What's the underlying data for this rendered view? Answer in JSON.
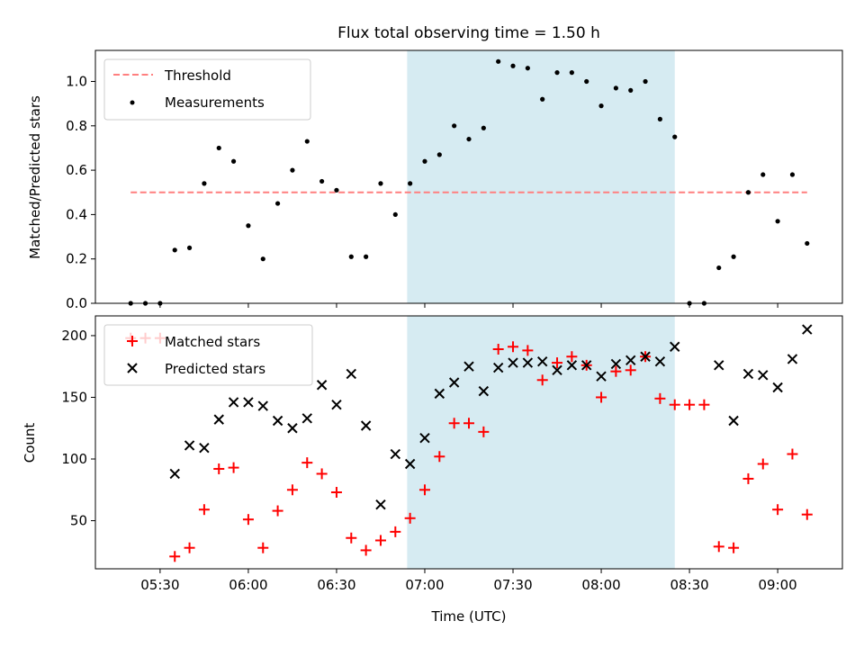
{
  "figure": {
    "title": "Flux total observing time = 1.50 h"
  },
  "colors": {
    "threshold": "#ff7f7f",
    "measurement": "#000000",
    "matched": "#ff0000",
    "predicted": "#000000",
    "observing_span": "#add8e6"
  },
  "chart_data": [
    {
      "type": "scatter",
      "panel": "top",
      "title": "Flux total observing time = 1.50 h",
      "xlabel": "",
      "ylabel": "Matched/Predicted stars",
      "xlim": [
        "05:08",
        "09:22"
      ],
      "ylim": [
        0,
        1.14
      ],
      "yticks": [
        0.0,
        0.2,
        0.4,
        0.6,
        0.8,
        1.0
      ],
      "ytick_labels": [
        "0.0",
        "0.2",
        "0.4",
        "0.6",
        "0.8",
        "1.0"
      ],
      "legend_position": "upper left",
      "shaded_span": [
        "06:54",
        "08:25"
      ],
      "threshold": {
        "name": "Threshold",
        "y": 0.5,
        "x_range": [
          "05:20",
          "09:10"
        ]
      },
      "series": [
        {
          "name": "Measurements",
          "x": [
            "05:20",
            "05:25",
            "05:30",
            "05:35",
            "05:40",
            "05:45",
            "05:50",
            "05:55",
            "06:00",
            "06:05",
            "06:10",
            "06:15",
            "06:20",
            "06:25",
            "06:30",
            "06:35",
            "06:40",
            "06:45",
            "06:50",
            "06:55",
            "07:00",
            "07:05",
            "07:10",
            "07:15",
            "07:20",
            "07:25",
            "07:30",
            "07:35",
            "07:40",
            "07:45",
            "07:50",
            "07:55",
            "08:00",
            "08:05",
            "08:10",
            "08:15",
            "08:20",
            "08:25",
            "08:30",
            "08:35",
            "08:40",
            "08:45",
            "08:50",
            "08:55",
            "09:00",
            "09:05",
            "09:10"
          ],
          "y": [
            0.0,
            0.0,
            0.0,
            0.24,
            0.25,
            0.54,
            0.7,
            0.64,
            0.35,
            0.2,
            0.45,
            0.6,
            0.73,
            0.55,
            0.51,
            0.21,
            0.21,
            0.54,
            0.4,
            0.54,
            0.64,
            0.67,
            0.8,
            0.74,
            0.79,
            1.09,
            1.07,
            1.06,
            0.92,
            1.04,
            1.04,
            1.0,
            0.89,
            0.97,
            0.96,
            1.0,
            0.83,
            0.75,
            0.0,
            0.0,
            0.16,
            0.21,
            0.5,
            0.58,
            0.37,
            0.58,
            0.27
          ]
        }
      ]
    },
    {
      "type": "scatter",
      "panel": "bottom",
      "xlabel": "Time (UTC)",
      "ylabel": "Count",
      "xlim": [
        "05:08",
        "09:22"
      ],
      "ylim": [
        11,
        216
      ],
      "yticks": [
        50,
        100,
        150,
        200
      ],
      "ytick_labels": [
        "50",
        "100",
        "150",
        "200"
      ],
      "xticks": [
        "05:30",
        "06:00",
        "06:30",
        "07:00",
        "07:30",
        "08:00",
        "08:30",
        "09:00"
      ],
      "xtick_labels": [
        "05:30",
        "06:00",
        "06:30",
        "07:00",
        "07:30",
        "08:00",
        "08:30",
        "09:00"
      ],
      "legend_position": "upper left",
      "shaded_span": [
        "06:54",
        "08:25"
      ],
      "series": [
        {
          "name": "Matched stars",
          "x": [
            "05:20",
            "05:25",
            "05:30",
            "05:35",
            "05:40",
            "05:45",
            "05:50",
            "05:55",
            "06:00",
            "06:05",
            "06:10",
            "06:15",
            "06:20",
            "06:25",
            "06:30",
            "06:35",
            "06:40",
            "06:45",
            "06:50",
            "06:55",
            "07:00",
            "07:05",
            "07:10",
            "07:15",
            "07:20",
            "07:25",
            "07:30",
            "07:35",
            "07:40",
            "07:45",
            "07:50",
            "07:55",
            "08:00",
            "08:05",
            "08:10",
            "08:15",
            "08:20",
            "08:25",
            "08:30",
            "08:35",
            "08:40",
            "08:45",
            "08:50",
            "08:55",
            "09:00",
            "09:05",
            "09:10"
          ],
          "y": [
            198,
            198,
            198,
            21,
            28,
            59,
            92,
            93,
            51,
            28,
            58,
            75,
            97,
            88,
            73,
            36,
            26,
            34,
            41,
            52,
            75,
            102,
            129,
            129,
            122,
            189,
            191,
            188,
            164,
            178,
            183,
            176,
            150,
            171,
            172,
            183,
            149,
            144,
            144,
            144,
            29,
            28,
            84,
            96,
            59,
            104,
            55
          ]
        },
        {
          "name": "Predicted stars",
          "x": [
            "05:35",
            "05:40",
            "05:45",
            "05:50",
            "05:55",
            "06:00",
            "06:05",
            "06:10",
            "06:15",
            "06:20",
            "06:25",
            "06:30",
            "06:35",
            "06:40",
            "06:45",
            "06:50",
            "06:55",
            "07:00",
            "07:05",
            "07:10",
            "07:15",
            "07:20",
            "07:25",
            "07:30",
            "07:35",
            "07:40",
            "07:45",
            "07:50",
            "07:55",
            "08:00",
            "08:05",
            "08:10",
            "08:15",
            "08:20",
            "08:25",
            "08:40",
            "08:45",
            "08:50",
            "08:55",
            "09:00",
            "09:05",
            "09:10"
          ],
          "y": [
            88,
            111,
            109,
            132,
            146,
            146,
            143,
            131,
            125,
            133,
            160,
            144,
            169,
            127,
            63,
            104,
            96,
            117,
            153,
            162,
            175,
            155,
            174,
            178,
            178,
            179,
            172,
            176,
            176,
            167,
            177,
            180,
            183,
            179,
            191,
            176,
            131,
            169,
            168,
            158,
            181,
            205
          ]
        }
      ]
    }
  ]
}
